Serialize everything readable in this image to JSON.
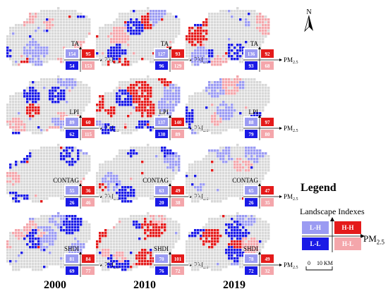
{
  "north_label": "N",
  "years": [
    "2000",
    "2010",
    "2019"
  ],
  "indexes": [
    "TA",
    "LPI",
    "CONTAG",
    "SHDI"
  ],
  "pm_label": "PM",
  "pm_sub": "2.5",
  "quadrant_colors": {
    "LH": "#9b9bf2",
    "HH": "#e41a1a",
    "LL": "#1a1ae6",
    "HL": "#f4a6ab",
    "none": "#d8d8d8"
  },
  "panels": [
    {
      "index": "TA",
      "year": "2000",
      "counts": {
        "LH": "154",
        "HH": "95",
        "LL": "54",
        "HL": "153"
      },
      "coverage": 0.4,
      "mix": [
        0.3,
        0.12,
        0.23,
        0.35
      ]
    },
    {
      "index": "TA",
      "year": "2010",
      "counts": {
        "LH": "127",
        "HH": "93",
        "LL": "96",
        "HL": "129"
      },
      "coverage": 0.42,
      "mix": [
        0.28,
        0.3,
        0.24,
        0.18
      ]
    },
    {
      "index": "TA",
      "year": "2019",
      "counts": {
        "LH": "136",
        "HH": "92",
        "LL": "93",
        "HL": "68"
      },
      "coverage": 0.3,
      "mix": [
        0.35,
        0.18,
        0.35,
        0.12
      ]
    },
    {
      "index": "LPI",
      "year": "2000",
      "counts": {
        "LH": "89",
        "HH": "60",
        "LL": "62",
        "HL": "115"
      },
      "coverage": 0.4,
      "mix": [
        0.3,
        0.12,
        0.22,
        0.36
      ]
    },
    {
      "index": "LPI",
      "year": "2010",
      "counts": {
        "LH": "137",
        "HH": "140",
        "LL": "130",
        "HL": "89"
      },
      "coverage": 0.52,
      "mix": [
        0.2,
        0.38,
        0.32,
        0.1
      ]
    },
    {
      "index": "LPI",
      "year": "2019",
      "counts": {
        "LH": "88",
        "HH": "97",
        "LL": "79",
        "HL": "80"
      },
      "coverage": 0.32,
      "mix": [
        0.34,
        0.18,
        0.3,
        0.18
      ]
    },
    {
      "index": "CONTAG",
      "year": "2000",
      "counts": {
        "LH": "55",
        "HH": "36",
        "LL": "26",
        "HL": "46"
      },
      "coverage": 0.12,
      "mix": [
        0.3,
        0.2,
        0.2,
        0.3
      ]
    },
    {
      "index": "CONTAG",
      "year": "2010",
      "counts": {
        "LH": "63",
        "HH": "49",
        "LL": "20",
        "HL": "38"
      },
      "coverage": 0.13,
      "mix": [
        0.32,
        0.28,
        0.15,
        0.25
      ]
    },
    {
      "index": "CONTAG",
      "year": "2019",
      "counts": {
        "LH": "65",
        "HH": "47",
        "LL": "26",
        "HL": "35"
      },
      "coverage": 0.13,
      "mix": [
        0.34,
        0.24,
        0.16,
        0.26
      ]
    },
    {
      "index": "SHDI",
      "year": "2000",
      "counts": {
        "LH": "81",
        "HH": "84",
        "LL": "69",
        "HL": "77"
      },
      "coverage": 0.27,
      "mix": [
        0.26,
        0.28,
        0.22,
        0.24
      ]
    },
    {
      "index": "SHDI",
      "year": "2010",
      "counts": {
        "LH": "70",
        "HH": "101",
        "LL": "76",
        "HL": "72"
      },
      "coverage": 0.29,
      "mix": [
        0.24,
        0.3,
        0.24,
        0.22
      ]
    },
    {
      "index": "SHDI",
      "year": "2019",
      "counts": {
        "LH": "78",
        "HH": "49",
        "LL": "72",
        "HL": "32"
      },
      "coverage": 0.2,
      "mix": [
        0.33,
        0.22,
        0.34,
        0.11
      ]
    }
  ],
  "legend": {
    "title": "Legend",
    "subtitle": "Landscape Indexes",
    "boxes": {
      "LH": "L-H",
      "HH": "H-H",
      "LL": "L-L",
      "HL": "H-L"
    },
    "scale_zero": "0",
    "scale_max": "10 KM"
  }
}
